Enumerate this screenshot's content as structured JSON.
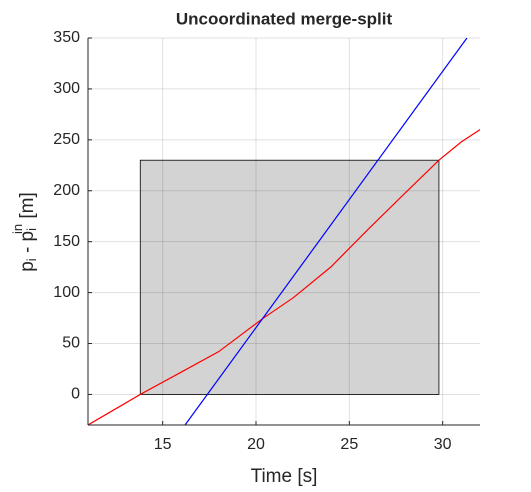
{
  "chart_data": {
    "type": "line",
    "title": "Uncoordinated merge-split",
    "xlabel": "Time [s]",
    "ylabel": {
      "p1": "p",
      "s1": "i",
      "mid": " - p",
      "s2": "i",
      "sup": "in",
      "unit": " [m]"
    },
    "xlim": [
      11,
      32
    ],
    "xticks": [
      15,
      20,
      25,
      30
    ],
    "ylim": [
      -30,
      350
    ],
    "yticks": [
      0,
      50,
      100,
      150,
      200,
      250,
      300,
      350
    ],
    "grid": true,
    "region": {
      "x": [
        13.8,
        29.8
      ],
      "y": [
        0,
        230
      ],
      "color": "#d3d3d3"
    },
    "series": [
      {
        "color": "#ff0000",
        "x": [
          11,
          13.8,
          16,
          18,
          20.4,
          22,
          24,
          26,
          28,
          29.8,
          31,
          32
        ],
        "values": [
          -30,
          0,
          22,
          42,
          75,
          95,
          125,
          162,
          198,
          230,
          248,
          260
        ]
      },
      {
        "color": "#0000ff",
        "x": [
          16.2,
          31.3
        ],
        "values": [
          -30,
          350
        ]
      }
    ]
  }
}
